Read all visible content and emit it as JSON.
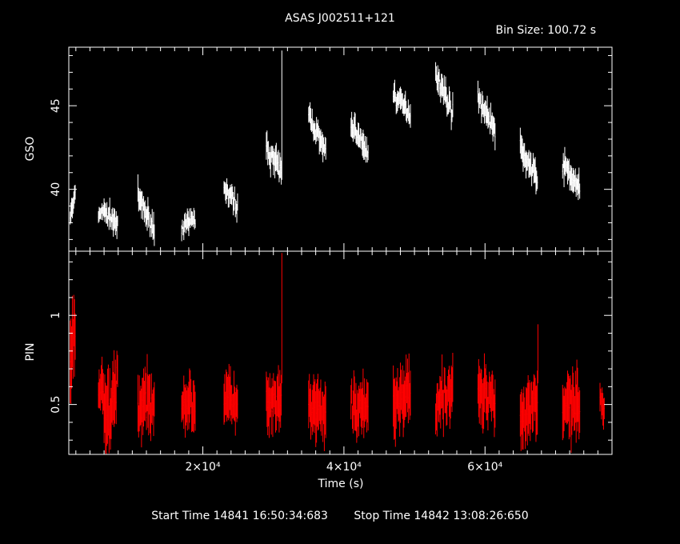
{
  "title": "ASAS J002511+121",
  "bin_size": "Bin Size: 100.72 s",
  "footer": {
    "start": "Start Time 14841 16:50:34:683",
    "stop": "Stop Time 14842 13:08:26:650"
  },
  "colors": {
    "background": "#000000",
    "axes": "#ffffff",
    "gso": "#ffffff",
    "pin": "#ff0000"
  },
  "chart_data": [
    {
      "type": "line",
      "panel": "top",
      "ylabel": "GSO",
      "xlabel": "",
      "xlim": [
        1000,
        78000
      ],
      "ylim": [
        36.3,
        48.5
      ],
      "yticks": [
        40,
        45
      ],
      "series": [
        {
          "segments": [
            {
              "t0": 1200,
              "t1": 2000,
              "y0": 38.4,
              "y1": 39.7,
              "noise": 0.6
            },
            {
              "t0": 5200,
              "t1": 6000,
              "y0": 38.4,
              "y1": 38.8,
              "noise": 0.5
            },
            {
              "t0": 6000,
              "t1": 8000,
              "y0": 38.6,
              "y1": 38.0,
              "noise": 0.6
            },
            {
              "t0": 10800,
              "t1": 13200,
              "y0": 39.5,
              "y1": 37.5,
              "noise": 0.7
            },
            {
              "t0": 17000,
              "t1": 19000,
              "y0": 37.7,
              "y1": 38.3,
              "noise": 0.5
            },
            {
              "t0": 23000,
              "t1": 25000,
              "y0": 40.0,
              "y1": 39.0,
              "noise": 0.6
            },
            {
              "t0": 29000,
              "t1": 31200,
              "y0": 42.5,
              "y1": 41.0,
              "noise": 0.7
            },
            {
              "t0": 35000,
              "t1": 37500,
              "y0": 44.5,
              "y1": 42.0,
              "noise": 0.7
            },
            {
              "t0": 41000,
              "t1": 43500,
              "y0": 44.0,
              "y1": 42.0,
              "noise": 0.7
            },
            {
              "t0": 47000,
              "t1": 49500,
              "y0": 45.7,
              "y1": 44.5,
              "noise": 0.6
            },
            {
              "t0": 53000,
              "t1": 55500,
              "y0": 47.0,
              "y1": 44.5,
              "noise": 0.7
            },
            {
              "t0": 59000,
              "t1": 61500,
              "y0": 45.5,
              "y1": 43.5,
              "noise": 0.7
            },
            {
              "t0": 65000,
              "t1": 67500,
              "y0": 42.5,
              "y1": 40.5,
              "noise": 0.7
            },
            {
              "t0": 71000,
              "t1": 73500,
              "y0": 41.5,
              "y1": 40.0,
              "noise": 0.7
            }
          ],
          "spikes": [
            {
              "t": 31200,
              "y": 48.3
            }
          ]
        }
      ]
    },
    {
      "type": "line",
      "panel": "bottom",
      "ylabel": "PIN",
      "xlabel": "Time (s)",
      "xlim": [
        1000,
        78000
      ],
      "ylim": [
        0.22,
        1.36
      ],
      "yticks": [
        0.5,
        1
      ],
      "xticks": [
        20000,
        40000,
        60000
      ],
      "xtick_labels": [
        "2×10⁴",
        "4×10⁴",
        "6×10⁴"
      ],
      "series": [
        {
          "segments": [
            {
              "t0": 1200,
              "t1": 2000,
              "y0": 0.7,
              "y1": 0.9,
              "noise": 0.22
            },
            {
              "t0": 5200,
              "t1": 6000,
              "y0": 0.58,
              "y1": 0.6,
              "noise": 0.12
            },
            {
              "t0": 6000,
              "t1": 8000,
              "y0": 0.4,
              "y1": 0.62,
              "noise": 0.18
            },
            {
              "t0": 10800,
              "t1": 13200,
              "y0": 0.5,
              "y1": 0.52,
              "noise": 0.14
            },
            {
              "t0": 17000,
              "t1": 19000,
              "y0": 0.52,
              "y1": 0.5,
              "noise": 0.13
            },
            {
              "t0": 23000,
              "t1": 25000,
              "y0": 0.56,
              "y1": 0.48,
              "noise": 0.13
            },
            {
              "t0": 29000,
              "t1": 31200,
              "y0": 0.5,
              "y1": 0.5,
              "noise": 0.13
            },
            {
              "t0": 35000,
              "t1": 37500,
              "y0": 0.5,
              "y1": 0.44,
              "noise": 0.14
            },
            {
              "t0": 41000,
              "t1": 43500,
              "y0": 0.5,
              "y1": 0.46,
              "noise": 0.13
            },
            {
              "t0": 47000,
              "t1": 49500,
              "y0": 0.52,
              "y1": 0.56,
              "noise": 0.15
            },
            {
              "t0": 53000,
              "t1": 55500,
              "y0": 0.52,
              "y1": 0.58,
              "noise": 0.14
            },
            {
              "t0": 59000,
              "t1": 61500,
              "y0": 0.56,
              "y1": 0.54,
              "noise": 0.14
            },
            {
              "t0": 65000,
              "t1": 67500,
              "y0": 0.42,
              "y1": 0.55,
              "noise": 0.15
            },
            {
              "t0": 71000,
              "t1": 73500,
              "y0": 0.46,
              "y1": 0.5,
              "noise": 0.15
            },
            {
              "t0": 76300,
              "t1": 77000,
              "y0": 0.5,
              "y1": 0.45,
              "noise": 0.08
            }
          ],
          "spikes": [
            {
              "t": 31200,
              "y": 1.35
            },
            {
              "t": 67500,
              "y": 0.95
            }
          ]
        }
      ]
    }
  ]
}
